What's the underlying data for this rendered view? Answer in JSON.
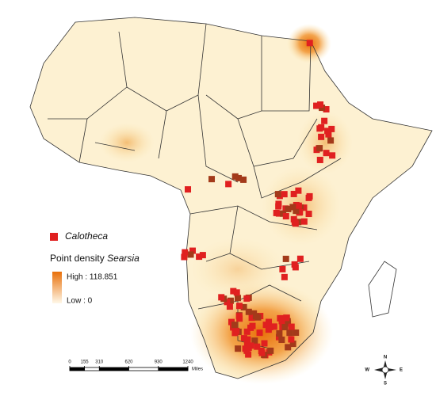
{
  "legend": {
    "points_label": "Calotheca",
    "density_title": "Point density",
    "density_species": "Searsia",
    "high_label": "High : 118.851",
    "low_label": "Low : 0"
  },
  "scale_bar": {
    "ticks": [
      0,
      155,
      310,
      620,
      930,
      1240
    ],
    "unit": "Miles"
  },
  "compass": {
    "north": "N",
    "east": "E",
    "south": "S",
    "west": "W"
  }
}
